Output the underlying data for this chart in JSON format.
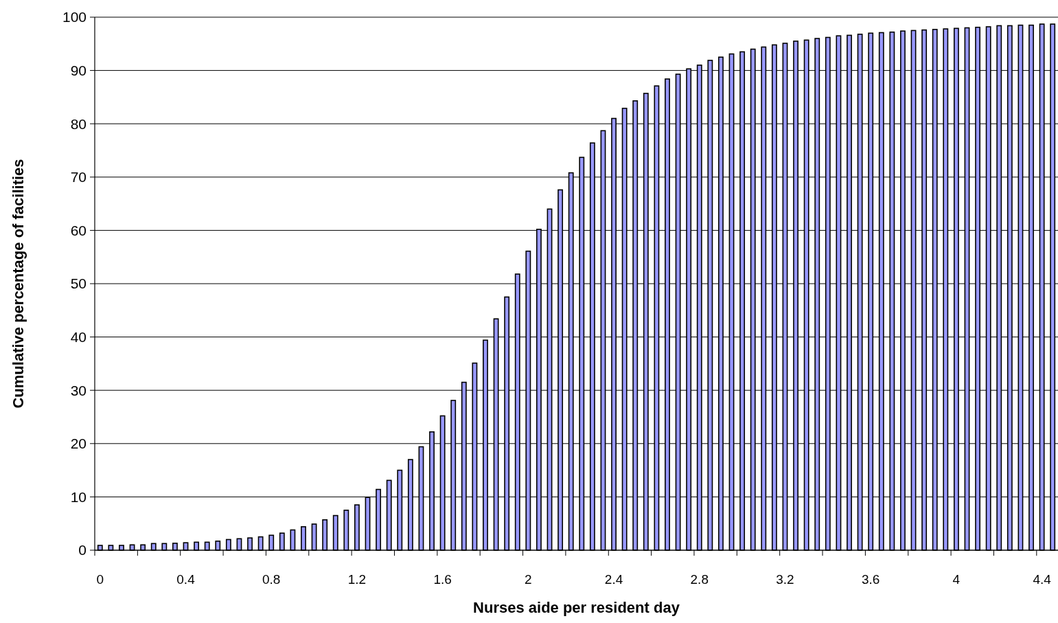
{
  "chart_data": {
    "type": "bar",
    "xlabel": "Nurses aide per resident day",
    "ylabel": "Cumulative percentage of facilities",
    "categories": [
      "0",
      null,
      null,
      null,
      null,
      null,
      null,
      null,
      "0.4",
      null,
      null,
      null,
      null,
      null,
      null,
      null,
      "0.8",
      null,
      null,
      null,
      null,
      null,
      null,
      null,
      "1.2",
      null,
      null,
      null,
      null,
      null,
      null,
      null,
      "1.6",
      null,
      null,
      null,
      null,
      null,
      null,
      null,
      "2",
      null,
      null,
      null,
      null,
      null,
      null,
      null,
      "2.4",
      null,
      null,
      null,
      null,
      null,
      null,
      null,
      "2.8",
      null,
      null,
      null,
      null,
      null,
      null,
      null,
      "3.2",
      null,
      null,
      null,
      null,
      null,
      null,
      null,
      "3.6",
      null,
      null,
      null,
      null,
      null,
      null,
      null,
      "4",
      null,
      null,
      null,
      null,
      null,
      null,
      null,
      "4.4",
      null
    ],
    "values": [
      0.9,
      0.9,
      0.9,
      1.0,
      1.0,
      1.25,
      1.25,
      1.3,
      1.4,
      1.5,
      1.5,
      1.7,
      2.0,
      2.15,
      2.3,
      2.5,
      2.8,
      3.2,
      3.8,
      4.4,
      4.9,
      5.7,
      6.5,
      7.5,
      8.5,
      9.9,
      11.4,
      13.1,
      15.0,
      17.0,
      19.4,
      22.2,
      25.2,
      28.1,
      31.5,
      35.1,
      39.4,
      43.4,
      47.5,
      51.8,
      56.1,
      60.2,
      64.0,
      67.6,
      70.8,
      73.7,
      76.4,
      78.7,
      81.0,
      82.9,
      84.3,
      85.7,
      87.1,
      88.4,
      89.3,
      90.3,
      91.0,
      91.9,
      92.5,
      93.1,
      93.5,
      94.0,
      94.4,
      94.8,
      95.1,
      95.5,
      95.7,
      96.0,
      96.2,
      96.5,
      96.6,
      96.8,
      97.0,
      97.1,
      97.2,
      97.4,
      97.5,
      97.6,
      97.7,
      97.8,
      97.9,
      98.0,
      98.1,
      98.2,
      98.4,
      98.4,
      98.5,
      98.5,
      98.7,
      98.7
    ],
    "color": "#9999ff",
    "ylim": [
      0,
      100
    ],
    "yticks": [
      0,
      10,
      20,
      30,
      40,
      50,
      60,
      70,
      80,
      90,
      100
    ],
    "grid": "y"
  }
}
